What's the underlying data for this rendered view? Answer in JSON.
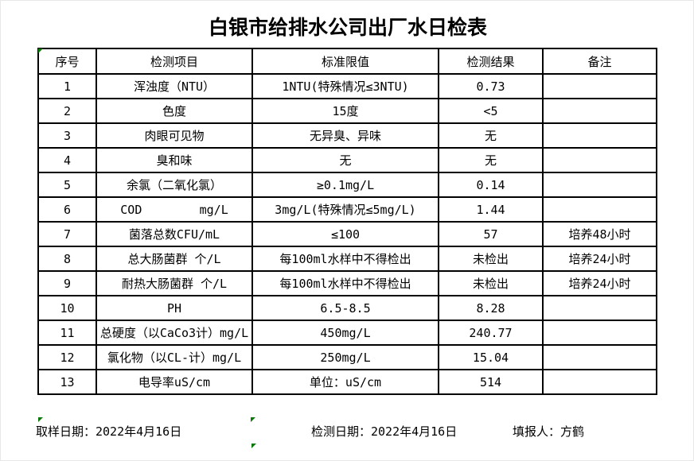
{
  "title": "白银市给排水公司出厂水日检表",
  "table": {
    "headers": [
      "序号",
      "检测项目",
      "标准限值",
      "检测结果",
      "备注"
    ],
    "rows": [
      [
        "1",
        "浑浊度（NTU）",
        "1NTU(特殊情况≤3NTU)",
        "0.73",
        ""
      ],
      [
        "2",
        "色度",
        "15度",
        "<5",
        ""
      ],
      [
        "3",
        "肉眼可见物",
        "无异臭、异味",
        "无",
        ""
      ],
      [
        "4",
        "臭和味",
        "无",
        "无",
        ""
      ],
      [
        "5",
        "余氯（二氧化氯）",
        "≥0.1mg/L",
        "0.14",
        ""
      ],
      [
        "6",
        "COD        mg/L",
        "3mg/L(特殊情况≤5mg/L)",
        "1.44",
        ""
      ],
      [
        "7",
        "菌落总数CFU/mL",
        "≤100",
        "57",
        "培养48小时"
      ],
      [
        "8",
        "总大肠菌群 个/L",
        "每100ml水样中不得检出",
        "未检出",
        "培养24小时"
      ],
      [
        "9",
        "耐热大肠菌群 个/L",
        "每100ml水样中不得检出",
        "未检出",
        "培养24小时"
      ],
      [
        "10",
        "PH",
        "6.5-8.5",
        "8.28",
        ""
      ],
      [
        "11",
        "总硬度（以CaCo3计）mg/L",
        "450mg/L",
        "240.77",
        ""
      ],
      [
        "12",
        "氯化物（以CL-计）mg/L",
        "250mg/L",
        "15.04",
        ""
      ],
      [
        "13",
        "电导率uS/cm",
        "单位：uS/cm",
        "514",
        ""
      ]
    ]
  },
  "footer": {
    "sampling_date": "取样日期：2022年4月16日",
    "test_date": "检测日期：2022年4月16日",
    "reporter": "填报人：方鹤"
  },
  "colors": {
    "marker_green": "#087808",
    "table_border": "#000000",
    "background": "#ffffff",
    "text": "#000000"
  }
}
